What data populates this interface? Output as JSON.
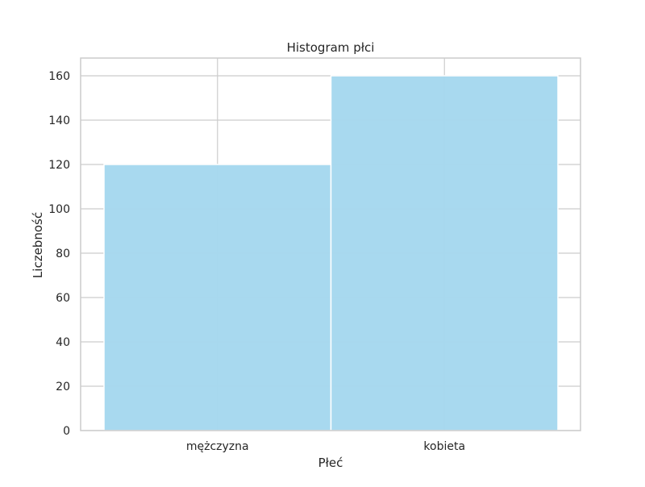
{
  "chart_data": {
    "type": "bar",
    "title": "Histogram płci",
    "xlabel": "Płeć",
    "ylabel": "Liczebność",
    "categories": [
      "mężczyzna",
      "kobieta"
    ],
    "values": [
      120,
      160
    ],
    "ylim": [
      0,
      168
    ],
    "yticks": [
      0,
      20,
      40,
      60,
      80,
      100,
      120,
      140,
      160
    ],
    "grid": true,
    "legend": "none",
    "bar_color": "#a5d8ee",
    "grid_color": "#cccccc",
    "spine_color": "#cccccc"
  }
}
